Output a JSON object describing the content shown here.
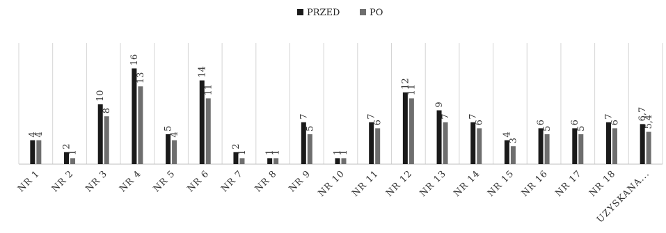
{
  "chart_data": {
    "type": "bar",
    "categories": [
      "NR 1",
      "NR 2",
      "NR 3",
      "NR 4",
      "NR 5",
      "NR 6",
      "NR 7",
      "NR 8",
      "NR 9",
      "NR 10",
      "NR 11",
      "NR 12",
      "NR 13",
      "NR 14",
      "NR 15",
      "NR 16",
      "NR 17",
      "NR 18",
      "UZYSKANA..."
    ],
    "series": [
      {
        "name": "PRZED",
        "color": "#1a1a1a",
        "values": [
          4,
          2,
          10,
          16,
          5,
          14,
          2,
          1,
          7,
          1,
          7,
          12,
          9,
          7,
          4,
          6,
          6,
          7,
          6.7
        ],
        "labels": [
          "4",
          "2",
          "10",
          "16",
          "5",
          "14",
          "2",
          "1",
          "7",
          "1",
          "7",
          "12",
          "9",
          "7",
          "4",
          "6",
          "6",
          "7",
          "6,7"
        ]
      },
      {
        "name": "PO",
        "color": "#6e6e6e",
        "values": [
          4,
          1,
          8,
          13,
          4,
          11,
          1,
          1,
          5,
          1,
          6,
          11,
          7,
          6,
          3,
          5,
          5,
          6,
          5.4
        ],
        "labels": [
          "4",
          "1",
          "8",
          "13",
          "4",
          "11",
          "1",
          "1",
          "5",
          "1",
          "6",
          "11",
          "7",
          "6",
          "3",
          "5",
          "5",
          "6",
          "5,4"
        ]
      }
    ],
    "title": "",
    "xlabel": "",
    "ylabel": "",
    "ylim": [
      0,
      18
    ],
    "grid": "vertical-category-lines",
    "legend": "top-center"
  }
}
